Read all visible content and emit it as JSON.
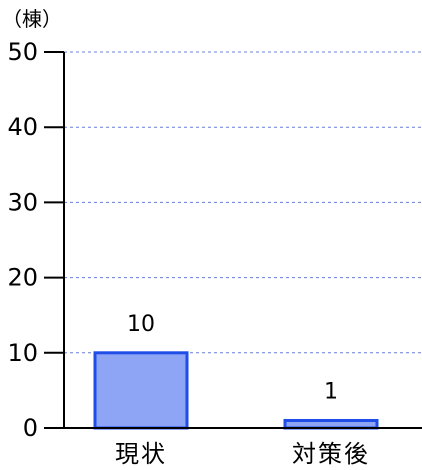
{
  "chart_data": {
    "type": "bar",
    "ylabel": "（棟）",
    "categories": [
      "現状",
      "対策後"
    ],
    "values": [
      10,
      1
    ],
    "data_labels": [
      "10",
      "1"
    ],
    "ylim": [
      0,
      50
    ],
    "yticks": [
      0,
      10,
      20,
      30,
      40,
      50
    ],
    "ytick_labels": [
      "0",
      "10",
      "20",
      "30",
      "40",
      "50"
    ],
    "grid": true,
    "legend": "none",
    "colors": {
      "bar_fill": "#8ea5f6",
      "bar_stroke": "#1f4de8",
      "gridline": "#6a7fd6",
      "axis": "#000000"
    }
  }
}
